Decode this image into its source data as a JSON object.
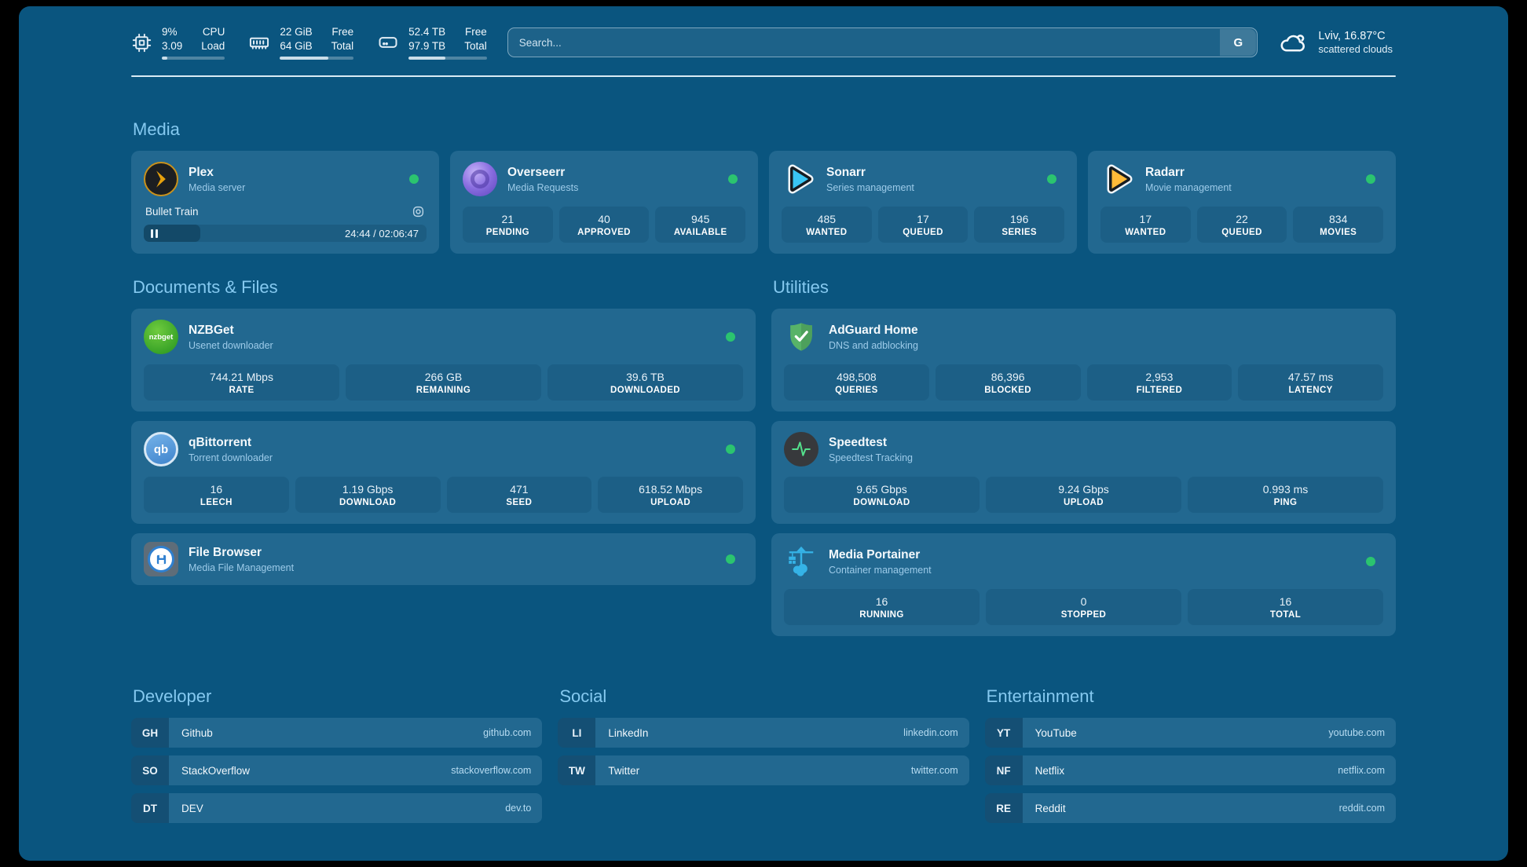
{
  "topbar": {
    "cpu": {
      "value_top": "9%",
      "value_bottom": "3.09",
      "label_top": "CPU",
      "label_bottom": "Load",
      "percent": 9
    },
    "memory": {
      "value_top": "22 GiB",
      "value_bottom": "64 GiB",
      "label_top": "Free",
      "label_bottom": "Total",
      "percent": 66
    },
    "disk": {
      "value_top": "52.4 TB",
      "value_bottom": "97.9 TB",
      "label_top": "Free",
      "label_bottom": "Total",
      "percent": 47
    },
    "search": {
      "placeholder": "Search...",
      "provider_label": "G"
    },
    "weather": {
      "title": "Lviv, 16.87°C",
      "condition": "scattered clouds"
    }
  },
  "sections": {
    "media": {
      "title": "Media",
      "cards": [
        {
          "name": "Plex",
          "subtitle": "Media server",
          "player": {
            "title": "Bullet Train",
            "time": "24:44 / 02:06:47",
            "percent": 20
          }
        },
        {
          "name": "Overseerr",
          "subtitle": "Media Requests",
          "stats": [
            {
              "value": "21",
              "label": "PENDING"
            },
            {
              "value": "40",
              "label": "APPROVED"
            },
            {
              "value": "945",
              "label": "AVAILABLE"
            }
          ]
        },
        {
          "name": "Sonarr",
          "subtitle": "Series management",
          "stats": [
            {
              "value": "485",
              "label": "WANTED"
            },
            {
              "value": "17",
              "label": "QUEUED"
            },
            {
              "value": "196",
              "label": "SERIES"
            }
          ]
        },
        {
          "name": "Radarr",
          "subtitle": "Movie management",
          "stats": [
            {
              "value": "17",
              "label": "WANTED"
            },
            {
              "value": "22",
              "label": "QUEUED"
            },
            {
              "value": "834",
              "label": "MOVIES"
            }
          ]
        }
      ]
    },
    "documents": {
      "title": "Documents & Files",
      "cards": [
        {
          "name": "NZBGet",
          "subtitle": "Usenet downloader",
          "stats": [
            {
              "value": "744.21 Mbps",
              "label": "RATE"
            },
            {
              "value": "266 GB",
              "label": "REMAINING"
            },
            {
              "value": "39.6 TB",
              "label": "DOWNLOADED"
            }
          ]
        },
        {
          "name": "qBittorrent",
          "subtitle": "Torrent downloader",
          "stats": [
            {
              "value": "16",
              "label": "LEECH"
            },
            {
              "value": "1.19 Gbps",
              "label": "DOWNLOAD"
            },
            {
              "value": "471",
              "label": "SEED"
            },
            {
              "value": "618.52 Mbps",
              "label": "UPLOAD"
            }
          ]
        },
        {
          "name": "File Browser",
          "subtitle": "Media File Management"
        }
      ]
    },
    "utilities": {
      "title": "Utilities",
      "cards": [
        {
          "name": "AdGuard Home",
          "subtitle": "DNS and adblocking",
          "stats": [
            {
              "value": "498,508",
              "label": "QUERIES"
            },
            {
              "value": "86,396",
              "label": "BLOCKED"
            },
            {
              "value": "2,953",
              "label": "FILTERED"
            },
            {
              "value": "47.57 ms",
              "label": "LATENCY"
            }
          ]
        },
        {
          "name": "Speedtest",
          "subtitle": "Speedtest Tracking",
          "stats": [
            {
              "value": "9.65 Gbps",
              "label": "DOWNLOAD"
            },
            {
              "value": "9.24 Gbps",
              "label": "UPLOAD"
            },
            {
              "value": "0.993 ms",
              "label": "PING"
            }
          ]
        },
        {
          "name": "Media Portainer",
          "subtitle": "Container management",
          "stats": [
            {
              "value": "16",
              "label": "RUNNING"
            },
            {
              "value": "0",
              "label": "STOPPED"
            },
            {
              "value": "16",
              "label": "TOTAL"
            }
          ]
        }
      ]
    }
  },
  "bookmarks": [
    {
      "title": "Developer",
      "items": [
        {
          "abbr": "GH",
          "name": "Github",
          "url": "github.com"
        },
        {
          "abbr": "SO",
          "name": "StackOverflow",
          "url": "stackoverflow.com"
        },
        {
          "abbr": "DT",
          "name": "DEV",
          "url": "dev.to"
        }
      ]
    },
    {
      "title": "Social",
      "items": [
        {
          "abbr": "LI",
          "name": "LinkedIn",
          "url": "linkedin.com"
        },
        {
          "abbr": "TW",
          "name": "Twitter",
          "url": "twitter.com"
        }
      ]
    },
    {
      "title": "Entertainment",
      "items": [
        {
          "abbr": "YT",
          "name": "YouTube",
          "url": "youtube.com"
        },
        {
          "abbr": "NF",
          "name": "Netflix",
          "url": "netflix.com"
        },
        {
          "abbr": "RE",
          "name": "Reddit",
          "url": "reddit.com"
        }
      ]
    }
  ],
  "icon_labels": {
    "nzbget": "nzbget",
    "qbittorrent": "qb"
  },
  "colors": {
    "background": "#0a557f",
    "card": "#226890",
    "status_online": "#2bc46f",
    "accent_text": "#85c9f0"
  }
}
